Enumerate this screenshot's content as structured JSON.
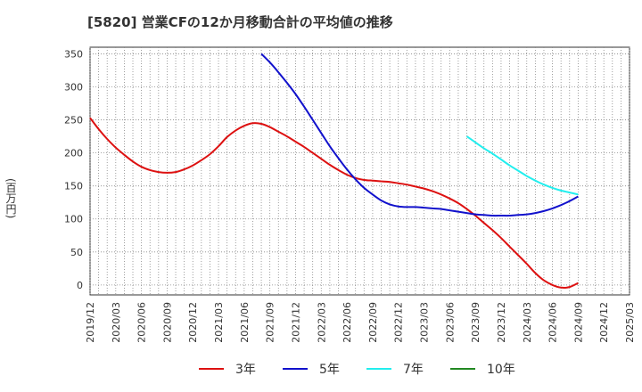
{
  "title": "[5820]  営業CFの12か月移動合計の平均値の推移",
  "chart_data": {
    "type": "line",
    "title": "[5820]  営業CFの12か月移動合計の平均値の推移",
    "ylabel": "(百万円)",
    "xlabel": "",
    "ylim": [
      -15,
      360
    ],
    "yticks": [
      0,
      50,
      100,
      150,
      200,
      250,
      300,
      350
    ],
    "xticks": [
      "2019/12",
      "2020/03",
      "2020/06",
      "2020/09",
      "2020/12",
      "2021/03",
      "2021/06",
      "2021/09",
      "2021/12",
      "2022/03",
      "2022/06",
      "2022/09",
      "2022/12",
      "2023/03",
      "2023/06",
      "2023/09",
      "2023/12",
      "2024/03",
      "2024/06",
      "2024/09",
      "2024/12",
      "2025/03"
    ],
    "grid": true,
    "legend_position": "bottom",
    "series": [
      {
        "name": "3年",
        "color": "#dd1111",
        "x": [
          "2019/12",
          "2020/01",
          "2020/02",
          "2020/03",
          "2020/04",
          "2020/05",
          "2020/06",
          "2020/07",
          "2020/08",
          "2020/09",
          "2020/10",
          "2020/11",
          "2020/12",
          "2021/01",
          "2021/02",
          "2021/03",
          "2021/04",
          "2021/05",
          "2021/06",
          "2021/07",
          "2021/08",
          "2021/09",
          "2021/10",
          "2021/11",
          "2021/12",
          "2022/01",
          "2022/02",
          "2022/03",
          "2022/04",
          "2022/05",
          "2022/06",
          "2022/07",
          "2022/08",
          "2022/09",
          "2022/10",
          "2022/11",
          "2022/12",
          "2023/01",
          "2023/02",
          "2023/03",
          "2023/04",
          "2023/05",
          "2023/06",
          "2023/07",
          "2023/08",
          "2023/09",
          "2023/10",
          "2023/11",
          "2023/12",
          "2024/01",
          "2024/02",
          "2024/03",
          "2024/04",
          "2024/05",
          "2024/06",
          "2024/07",
          "2024/08",
          "2024/09"
        ],
        "values": [
          253,
          236,
          221,
          208,
          197,
          187,
          179,
          174,
          171,
          170,
          171,
          175,
          181,
          189,
          198,
          210,
          224,
          234,
          241,
          245,
          244,
          239,
          232,
          225,
          217,
          209,
          200,
          191,
          182,
          174,
          167,
          162,
          159,
          158,
          157,
          156,
          154,
          152,
          149,
          146,
          142,
          137,
          131,
          124,
          115,
          105,
          94,
          83,
          71,
          58,
          45,
          32,
          18,
          7,
          0,
          -4,
          -3,
          3
        ]
      },
      {
        "name": "5年",
        "color": "#1111cc",
        "x": [
          "2021/08",
          "2021/09",
          "2021/10",
          "2021/11",
          "2021/12",
          "2022/01",
          "2022/02",
          "2022/03",
          "2022/04",
          "2022/05",
          "2022/06",
          "2022/07",
          "2022/08",
          "2022/09",
          "2022/10",
          "2022/11",
          "2022/12",
          "2023/01",
          "2023/02",
          "2023/03",
          "2023/04",
          "2023/05",
          "2023/06",
          "2023/07",
          "2023/08",
          "2023/09",
          "2023/10",
          "2023/11",
          "2023/12",
          "2024/01",
          "2024/02",
          "2024/03",
          "2024/04",
          "2024/05",
          "2024/06",
          "2024/07",
          "2024/08",
          "2024/09"
        ],
        "values": [
          350,
          337,
          322,
          306,
          289,
          270,
          250,
          230,
          210,
          192,
          175,
          160,
          147,
          137,
          128,
          122,
          119,
          118,
          118,
          117,
          116,
          115,
          113,
          111,
          109,
          107,
          106,
          105,
          105,
          105,
          106,
          107,
          109,
          112,
          116,
          121,
          127,
          134
        ]
      },
      {
        "name": "7年",
        "color": "#22eeee",
        "x": [
          "2023/08",
          "2023/09",
          "2023/10",
          "2023/11",
          "2023/12",
          "2024/01",
          "2024/02",
          "2024/03",
          "2024/04",
          "2024/05",
          "2024/06",
          "2024/07",
          "2024/08",
          "2024/09"
        ],
        "values": [
          225,
          216,
          207,
          199,
          190,
          181,
          173,
          165,
          158,
          152,
          147,
          143,
          140,
          137
        ]
      },
      {
        "name": "10年",
        "color": "#228822",
        "x": [],
        "values": []
      }
    ]
  }
}
